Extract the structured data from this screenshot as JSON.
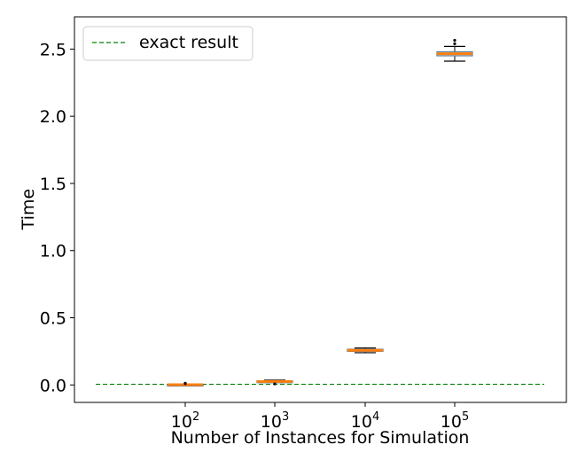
{
  "chart_data": {
    "type": "box",
    "title": "",
    "xlabel": "Number of Instances for Simulation",
    "ylabel": "Time",
    "ylim": [
      -0.13,
      2.74
    ],
    "yticks": [
      0.0,
      0.5,
      1.0,
      1.5,
      2.0,
      2.5
    ],
    "ytick_labels": [
      "0.0",
      "0.5",
      "1.0",
      "1.5",
      "2.0",
      "2.5"
    ],
    "categories": [
      {
        "base": "10",
        "exp": "2"
      },
      {
        "base": "10",
        "exp": "3"
      },
      {
        "base": "10",
        "exp": "4"
      },
      {
        "base": "10",
        "exp": "5"
      }
    ],
    "boxes": [
      {
        "whisker_low": 0.0,
        "q1": 0.0,
        "median": 0.002,
        "q3": 0.005,
        "whisker_high": 0.008,
        "outliers": [
          0.01,
          0.013
        ]
      },
      {
        "whisker_low": 0.018,
        "q1": 0.022,
        "median": 0.026,
        "q3": 0.03,
        "whisker_high": 0.036,
        "outliers": [
          0.008
        ]
      },
      {
        "whisker_low": 0.24,
        "q1": 0.25,
        "median": 0.258,
        "q3": 0.266,
        "whisker_high": 0.275,
        "outliers": []
      },
      {
        "whisker_low": 2.41,
        "q1": 2.45,
        "median": 2.465,
        "q3": 2.48,
        "whisker_high": 2.52,
        "outliers": [
          2.54,
          2.565
        ]
      }
    ],
    "reference_line": {
      "name": "exact result",
      "y": 0.005,
      "color": "#008000",
      "style": "dashed"
    },
    "legend": {
      "placement": "upper-left",
      "entries": [
        "exact result"
      ]
    },
    "grid": false,
    "colors": {
      "box": "#5a7d9a",
      "median": "#ff7f0e",
      "whisker": "#000000",
      "outlier": "#000000"
    }
  }
}
